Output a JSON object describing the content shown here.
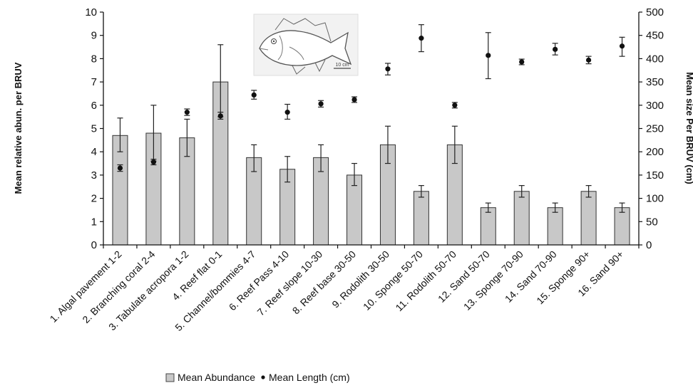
{
  "chart_data": {
    "type": "bar",
    "categories": [
      "1. Algal pavement 1-2",
      "2. Branching coral 2-4",
      "3. Tabulate acropora 1-2",
      "4. Reef flat 0-1",
      "5. Channel/bommies 4-7",
      "6. Reef Pass 4-10",
      "7. Reef slope 10-30",
      "8. Reef base 30-50",
      "9. Rodolith 30-50",
      "10. Sponge 50-70",
      "11. Rodolith 50-70",
      "12. Sand 50-70",
      "13. Sponge 70-90",
      "14. Sand 70-90",
      "15. Sponge 90+",
      "16. Sand 90+"
    ],
    "series": [
      {
        "name": "Mean Abundance",
        "kind": "bar",
        "axis": "left",
        "color": "#c8c8c8",
        "values": [
          4.7,
          4.8,
          4.6,
          7.0,
          3.75,
          3.25,
          3.75,
          3.0,
          4.3,
          2.3,
          4.3,
          1.6,
          2.3,
          1.6,
          2.3,
          1.6
        ],
        "err_high": [
          5.45,
          6.0,
          5.4,
          8.6,
          4.3,
          3.8,
          4.3,
          3.5,
          5.1,
          2.55,
          5.1,
          1.8,
          2.55,
          1.8,
          2.55,
          1.8
        ],
        "err_low": [
          4.0,
          3.6,
          3.8,
          5.5,
          3.15,
          2.7,
          3.15,
          2.55,
          3.5,
          2.05,
          3.5,
          1.4,
          2.05,
          1.4,
          2.05,
          1.4
        ]
      },
      {
        "name": "Mean Length (cm)",
        "kind": "scatter",
        "axis": "right",
        "color": "#111111",
        "values": [
          165,
          178,
          285,
          277,
          322,
          285,
          303,
          312,
          378,
          444,
          300,
          407,
          393,
          420,
          397,
          427
        ],
        "err_high": [
          172,
          184,
          292,
          285,
          332,
          302,
          310,
          318,
          390,
          473,
          306,
          456,
          399,
          433,
          405,
          446
        ],
        "err_low": [
          158,
          172,
          278,
          270,
          313,
          270,
          296,
          306,
          365,
          415,
          294,
          357,
          387,
          408,
          389,
          405
        ]
      }
    ],
    "ylabel": "Mean relative abun. per BRUV",
    "y2label": "Mean size Per BRUV (cm)",
    "ylim": [
      0,
      10
    ],
    "y2lim": [
      0,
      500
    ],
    "yticks": [
      0,
      1,
      2,
      3,
      4,
      5,
      6,
      7,
      8,
      9,
      10
    ],
    "y2ticks": [
      0,
      50,
      100,
      150,
      200,
      250,
      300,
      350,
      400,
      450,
      500
    ],
    "grid": false,
    "legend_position": "bottom",
    "inset_image": {
      "icon": "fish-drawing-icon",
      "scale_label": "10 cm"
    }
  }
}
